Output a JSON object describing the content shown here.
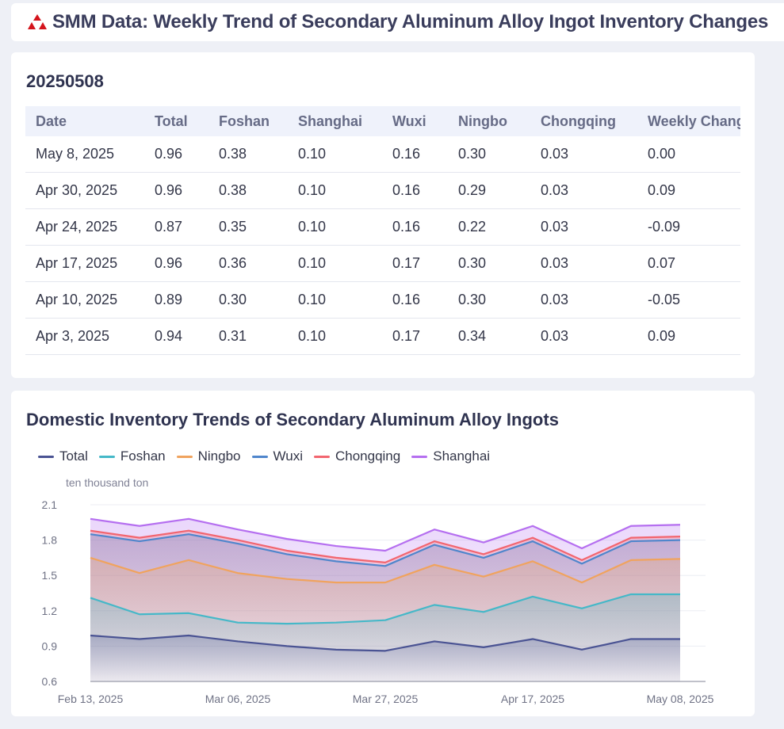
{
  "header": {
    "title": "SMM Data: Weekly Trend of Secondary Aluminum Alloy Ingot Inventory Changes"
  },
  "table": {
    "date": "20250508",
    "columns": [
      "Date",
      "Total",
      "Foshan",
      "Shanghai",
      "Wuxi",
      "Ningbo",
      "Chongqing",
      "Weekly Change"
    ],
    "rows": [
      [
        "May 8, 2025",
        "0.96",
        "0.38",
        "0.10",
        "0.16",
        "0.30",
        "0.03",
        "0.00"
      ],
      [
        "Apr 30, 2025",
        "0.96",
        "0.38",
        "0.10",
        "0.16",
        "0.29",
        "0.03",
        "0.09"
      ],
      [
        "Apr 24, 2025",
        "0.87",
        "0.35",
        "0.10",
        "0.16",
        "0.22",
        "0.03",
        "-0.09"
      ],
      [
        "Apr 17, 2025",
        "0.96",
        "0.36",
        "0.10",
        "0.17",
        "0.30",
        "0.03",
        "0.07"
      ],
      [
        "Apr 10, 2025",
        "0.89",
        "0.30",
        "0.10",
        "0.16",
        "0.30",
        "0.03",
        "-0.05"
      ],
      [
        "Apr 3, 2025",
        "0.94",
        "0.31",
        "0.10",
        "0.17",
        "0.34",
        "0.03",
        "0.09"
      ]
    ]
  },
  "chart_data": {
    "type": "area",
    "title": "Domestic Inventory Trends of Secondary Aluminum Alloy Ingots",
    "ylabel": "ten thousand ton",
    "ylim": [
      0.6,
      2.1
    ],
    "yticks": [
      "0.6",
      "0.9",
      "1.2",
      "1.5",
      "1.8",
      "2.1"
    ],
    "xtick_labels": [
      "Feb 13, 2025",
      "Mar 06, 2025",
      "Mar 27, 2025",
      "Apr 17, 2025",
      "May 08, 2025"
    ],
    "xtick_index": [
      0,
      3,
      6,
      9,
      12
    ],
    "x": [
      "2025-02-13",
      "2025-02-20",
      "2025-02-27",
      "2025-03-06",
      "2025-03-13",
      "2025-03-20",
      "2025-03-27",
      "2025-04-03",
      "2025-04-10",
      "2025-04-17",
      "2025-04-24",
      "2025-04-30",
      "2025-05-08"
    ],
    "series": [
      {
        "name": "Total",
        "color": "#4a5393",
        "values": [
          0.99,
          0.96,
          0.99,
          0.94,
          0.9,
          0.87,
          0.86,
          0.94,
          0.89,
          0.96,
          0.87,
          0.96,
          0.96
        ]
      },
      {
        "name": "Foshan",
        "color": "#45b8c8",
        "values": [
          1.31,
          1.17,
          1.18,
          1.1,
          1.09,
          1.1,
          1.12,
          1.25,
          1.19,
          1.32,
          1.22,
          1.34,
          1.34
        ]
      },
      {
        "name": "Ningbo",
        "color": "#f0a35e",
        "values": [
          1.65,
          1.52,
          1.63,
          1.52,
          1.47,
          1.44,
          1.44,
          1.59,
          1.49,
          1.62,
          1.44,
          1.63,
          1.64
        ]
      },
      {
        "name": "Wuxi",
        "color": "#4f86cc",
        "values": [
          1.85,
          1.79,
          1.85,
          1.77,
          1.68,
          1.62,
          1.58,
          1.76,
          1.65,
          1.79,
          1.6,
          1.79,
          1.8
        ]
      },
      {
        "name": "Chongqing",
        "color": "#f2656f",
        "values": [
          1.88,
          1.82,
          1.88,
          1.8,
          1.71,
          1.65,
          1.61,
          1.79,
          1.68,
          1.82,
          1.63,
          1.82,
          1.83
        ]
      },
      {
        "name": "Shanghai",
        "color": "#b56ff0",
        "values": [
          1.98,
          1.92,
          1.98,
          1.89,
          1.81,
          1.75,
          1.71,
          1.89,
          1.78,
          1.92,
          1.73,
          1.92,
          1.93
        ]
      }
    ]
  }
}
